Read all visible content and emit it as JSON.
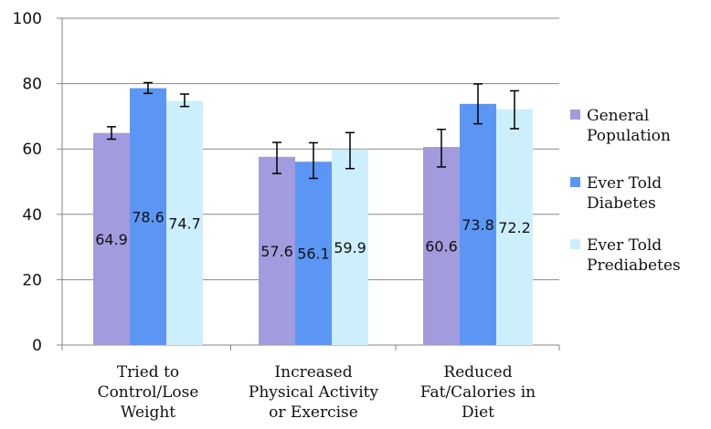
{
  "chart_data": {
    "type": "bar",
    "categories": [
      [
        "Tried to",
        "Control/Lose",
        "Weight"
      ],
      [
        "Increased",
        "Physical Activity",
        "or Exercise"
      ],
      [
        "Reduced",
        "Fat/Calories in",
        "Diet"
      ]
    ],
    "series": [
      {
        "name": [
          "General",
          "Population"
        ],
        "color": "#a29bdd",
        "values": [
          64.9,
          57.6,
          60.6
        ],
        "error": [
          [
            63.0,
            66.8
          ],
          [
            52.5,
            62.0
          ],
          [
            54.5,
            66.0
          ]
        ],
        "labels": [
          "64.9",
          "57.6",
          "60.6"
        ]
      },
      {
        "name": [
          "Ever Told",
          "Diabetes"
        ],
        "color": "#5b96f4",
        "values": [
          78.6,
          56.1,
          73.8
        ],
        "error": [
          [
            77.0,
            80.3
          ],
          [
            51.0,
            61.9
          ],
          [
            67.7,
            79.9
          ]
        ],
        "labels": [
          "78.6",
          "56.1",
          "73.8"
        ]
      },
      {
        "name": [
          "Ever Told",
          "Prediabetes"
        ],
        "color": "#cdeffd",
        "values": [
          74.7,
          59.9,
          72.2
        ],
        "error": [
          [
            73.0,
            76.8
          ],
          [
            54.0,
            65.0
          ],
          [
            66.2,
            77.8
          ]
        ],
        "labels": [
          "74.7",
          "59.9",
          "72.2"
        ]
      }
    ],
    "yticks": [
      "0",
      "20",
      "40",
      "60",
      "80",
      "100"
    ],
    "ylim": [
      0,
      100
    ],
    "grid": true,
    "legend": "right"
  }
}
